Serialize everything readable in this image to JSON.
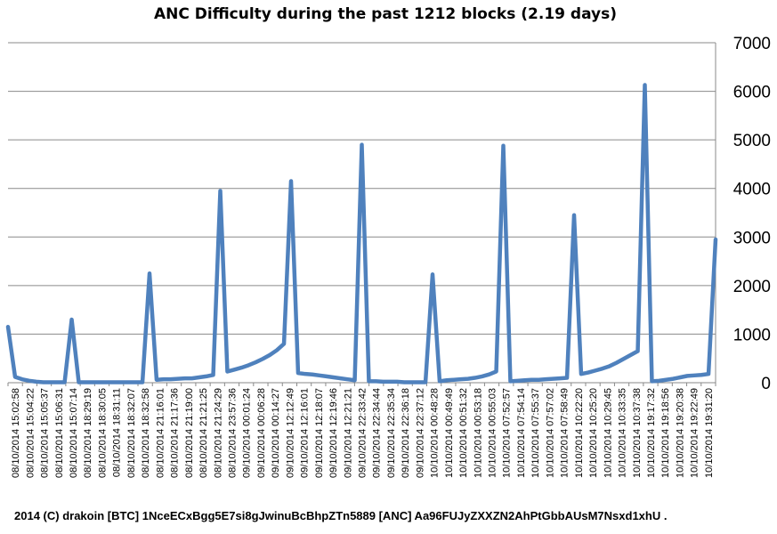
{
  "chart_data": {
    "type": "line",
    "title": "ANC Difficulty during the past 1212 blocks (2.19 days)",
    "xlabel": "",
    "ylabel": "",
    "ylim": [
      0,
      7000
    ],
    "y_ticks": [
      0,
      1000,
      2000,
      3000,
      4000,
      5000,
      6000,
      7000
    ],
    "y_axis_side": "right",
    "grid": "horizontal",
    "legend": "none",
    "line_color": "#4f81bd",
    "x_tick_labels": [
      "08/10/2014  15:02:58",
      "08/10/2014  15:04:22",
      "08/10/2014  15:05:37",
      "08/10/2014  15:06:31",
      "08/10/2014  15:07:14",
      "08/10/2014  18:29:19",
      "08/10/2014  18:30:05",
      "08/10/2014  18:31:11",
      "08/10/2014  18:32:07",
      "08/10/2014  18:32:58",
      "08/10/2014  21:16:01",
      "08/10/2014  21:17:36",
      "08/10/2014  21:19:00",
      "08/10/2014  21:21:25",
      "08/10/2014  21:24:29",
      "08/10/2014  23:57:36",
      "09/10/2014  00:01:24",
      "09/10/2014  00:06:28",
      "09/10/2014  00:14:27",
      "09/10/2014  12:12:49",
      "09/10/2014  12:16:01",
      "09/10/2014  12:18:07",
      "09/10/2014  12:19:46",
      "09/10/2014  12:21:21",
      "09/10/2014  22:33:42",
      "09/10/2014  22:34:44",
      "09/10/2014  22:35:34",
      "09/10/2014  22:36:18",
      "09/10/2014  22:37:12",
      "10/10/2014  00:48:28",
      "10/10/2014  00:49:49",
      "10/10/2014  00:51:32",
      "10/10/2014  00:53:18",
      "10/10/2014  00:55:03",
      "10/10/2014  07:52:57",
      "10/10/2014  07:54:14",
      "10/10/2014  07:55:37",
      "10/10/2014  07:57:02",
      "10/10/2014  07:58:49",
      "10/10/2014  10:22:20",
      "10/10/2014  10:25:20",
      "10/10/2014  10:29:45",
      "10/10/2014  10:33:35",
      "10/10/2014  10:37:38",
      "10/10/2014  19:17:32",
      "10/10/2014  19:18:56",
      "10/10/2014  19:20:38",
      "10/10/2014  19:22:49",
      "10/10/2014  19:31:20"
    ],
    "series": [
      {
        "values": [
          1150,
          120,
          70,
          40,
          20,
          10,
          10,
          10,
          10,
          1300,
          10,
          10,
          10,
          10,
          10,
          10,
          10,
          10,
          10,
          10,
          2250,
          60,
          70,
          70,
          80,
          90,
          90,
          110,
          130,
          160,
          3950,
          230,
          270,
          310,
          360,
          420,
          490,
          570,
          670,
          800,
          4150,
          200,
          180,
          170,
          150,
          130,
          110,
          90,
          70,
          50,
          4900,
          30,
          30,
          20,
          20,
          20,
          10,
          10,
          10,
          10,
          2230,
          30,
          50,
          60,
          70,
          80,
          100,
          130,
          170,
          230,
          4880,
          30,
          40,
          50,
          60,
          60,
          70,
          80,
          90,
          100,
          3450,
          180,
          210,
          250,
          290,
          340,
          410,
          490,
          570,
          650,
          6130,
          30,
          40,
          60,
          80,
          110,
          140,
          150,
          160,
          180,
          2950
        ]
      }
    ]
  },
  "footer": "2014 (C) drakoin  [BTC] 1NceECxBgg5E7si8gJwinuBcBhpZTn5889  [ANC] Aa96FUJyZXXZN2AhPtGbbAUsM7Nsxd1xhU ."
}
